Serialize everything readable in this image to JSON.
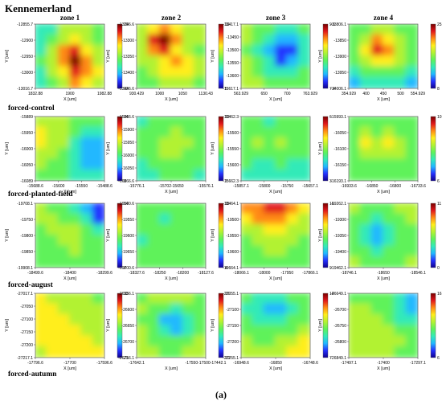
{
  "figure": {
    "title": "Kennemerland",
    "caption": "(a)"
  },
  "chart_data": {
    "type": "heatmap",
    "columns": [
      "zone 1",
      "zone 2",
      "zone 3",
      "zone 4"
    ],
    "rows": [
      "",
      "forced-control",
      "forced-planted-field",
      "forced-august",
      "forced-autumn"
    ],
    "panels": [
      {
        "row": 0,
        "col": 0,
        "xlabel": "X [um]",
        "ylabel": "Y [um]",
        "xticks": [
          "1832.88",
          "1900",
          "1982.88"
        ],
        "yticks": [
          "-12855.7",
          "-12900",
          "-12950",
          "-13000",
          "-13016.7"
        ],
        "cbar_ticks": [
          "19",
          "12"
        ],
        "scheme": [
          [
            2.0,
            2.6,
            3.5,
            4.0,
            3.8,
            3.0
          ],
          [
            2.2,
            3.0,
            4.0,
            4.5,
            4.2,
            3.2
          ],
          [
            2.5,
            3.6,
            5.2,
            6.0,
            5.0,
            3.6
          ],
          [
            2.8,
            3.8,
            5.6,
            6.8,
            5.6,
            4.0
          ],
          [
            2.5,
            3.5,
            5.0,
            6.2,
            5.8,
            4.4
          ],
          [
            2.2,
            3.0,
            4.2,
            5.2,
            5.0,
            4.2
          ]
        ]
      },
      {
        "row": 0,
        "col": 1,
        "xlabel": "X [um]",
        "ylabel": "Y [um]",
        "xticks": [
          "930.429",
          "1000",
          "1050",
          "1130.43"
        ],
        "yticks": [
          "-13246.6",
          "-13300",
          "-13350",
          "-13400",
          "-13446.6"
        ],
        "cbar_ticks": [
          "16",
          "5"
        ],
        "scheme": [
          [
            3.5,
            4.5,
            5.5,
            4.8,
            4.0,
            3.6
          ],
          [
            4.0,
            6.2,
            6.8,
            5.2,
            4.2,
            3.8
          ],
          [
            3.8,
            5.8,
            6.2,
            4.6,
            4.0,
            3.4
          ],
          [
            3.6,
            4.2,
            4.8,
            5.4,
            5.0,
            4.0
          ],
          [
            3.2,
            3.8,
            4.4,
            5.0,
            4.4,
            3.6
          ],
          [
            3.0,
            3.4,
            3.8,
            4.2,
            4.0,
            3.4
          ]
        ]
      },
      {
        "row": 0,
        "col": 2,
        "xlabel": "X [um]",
        "ylabel": "Y [um]",
        "xticks": [
          "563.929",
          "650",
          "700",
          "763.929"
        ],
        "yticks": [
          "-13417.1",
          "-13450",
          "-13500",
          "-13550",
          "-13600",
          "-13617.1"
        ],
        "cbar_ticks": [
          "9.6",
          "7.4"
        ],
        "scheme": [
          [
            3.8,
            3.2,
            2.8,
            2.4,
            2.6,
            3.0
          ],
          [
            3.6,
            2.8,
            2.2,
            1.6,
            1.8,
            2.6
          ],
          [
            3.4,
            2.6,
            1.8,
            0.6,
            0.8,
            2.2
          ],
          [
            3.6,
            2.8,
            2.0,
            1.0,
            1.2,
            2.4
          ],
          [
            3.8,
            3.2,
            2.6,
            2.2,
            2.4,
            3.0
          ],
          [
            4.0,
            3.6,
            3.2,
            3.0,
            3.2,
            3.4
          ]
        ]
      },
      {
        "row": 0,
        "col": 3,
        "xlabel": "X [um]",
        "ylabel": "Y [um]",
        "xticks": [
          "354.929",
          "400",
          "450",
          "500",
          "554.929"
        ],
        "yticks": [
          "-13806.1",
          "-13850",
          "-13900",
          "-13950",
          "-14006.1"
        ],
        "cbar_ticks": [
          "25",
          "8"
        ],
        "scheme": [
          [
            3.0,
            3.4,
            3.6,
            3.6,
            3.2,
            2.8
          ],
          [
            3.2,
            4.2,
            5.2,
            4.8,
            3.6,
            3.0
          ],
          [
            3.4,
            4.6,
            6.6,
            5.8,
            3.8,
            3.2
          ],
          [
            3.2,
            4.0,
            5.0,
            4.6,
            3.6,
            3.0
          ],
          [
            2.6,
            3.0,
            3.2,
            3.0,
            2.8,
            2.4
          ],
          [
            1.8,
            2.2,
            2.4,
            2.2,
            2.0,
            1.8
          ]
        ]
      },
      {
        "row": 1,
        "col": 0,
        "xlabel": "X [um]",
        "ylabel": "Y [um]",
        "xticks": [
          "-15688.6",
          "-15600",
          "-15550",
          "-15488.6"
        ],
        "yticks": [
          "-15889",
          "-15950",
          "-16000",
          "-16050",
          "-16089"
        ],
        "cbar_ticks": [
          "14",
          "8"
        ],
        "scheme": [
          [
            4.2,
            3.8,
            3.6,
            3.4,
            3.2,
            3.0
          ],
          [
            4.4,
            4.0,
            3.8,
            3.2,
            2.6,
            2.4
          ],
          [
            4.6,
            4.2,
            3.6,
            2.6,
            1.8,
            1.6
          ],
          [
            4.2,
            3.8,
            3.2,
            2.2,
            1.4,
            1.2
          ],
          [
            3.6,
            3.4,
            3.0,
            2.4,
            1.8,
            1.6
          ],
          [
            3.2,
            3.0,
            2.8,
            2.6,
            2.4,
            2.2
          ]
        ]
      },
      {
        "row": 1,
        "col": 1,
        "xlabel": "X [um]",
        "ylabel": "Y [um]",
        "xticks": [
          "-15776.1",
          "-15702-15650",
          "-15576.1"
        ],
        "yticks": [
          "-15866.6",
          "-15900",
          "-15950",
          "-16000",
          "-16050",
          "-16066.6"
        ],
        "cbar_ticks": [
          "12",
          "7"
        ],
        "scheme": [
          [
            2.6,
            2.8,
            3.0,
            3.2,
            3.0,
            2.8
          ],
          [
            2.8,
            3.2,
            3.4,
            3.6,
            3.2,
            3.0
          ],
          [
            3.0,
            3.4,
            3.8,
            4.0,
            3.6,
            3.2
          ],
          [
            2.8,
            3.2,
            3.6,
            3.8,
            3.4,
            3.0
          ],
          [
            2.6,
            3.0,
            3.2,
            3.4,
            3.0,
            2.8
          ],
          [
            2.4,
            2.6,
            2.8,
            3.0,
            2.8,
            2.6
          ]
        ]
      },
      {
        "row": 1,
        "col": 2,
        "xlabel": "X [um]",
        "ylabel": "Y [um]",
        "xticks": [
          "-15857.1",
          "-15800",
          "-15750",
          "-15657.1"
        ],
        "yticks": [
          "-15462.3",
          "-15500",
          "-15550",
          "-15600",
          "-15662.3"
        ],
        "cbar_ticks": [
          "6",
          "3"
        ],
        "scheme": [
          [
            3.0,
            2.8,
            2.6,
            2.8,
            3.0,
            3.2
          ],
          [
            3.2,
            3.0,
            2.8,
            3.4,
            3.2,
            3.0
          ],
          [
            3.4,
            3.6,
            3.2,
            3.8,
            3.4,
            3.2
          ],
          [
            3.0,
            3.2,
            2.8,
            3.4,
            3.0,
            2.8
          ],
          [
            2.8,
            2.6,
            2.4,
            2.8,
            2.6,
            2.6
          ],
          [
            2.6,
            2.4,
            2.2,
            2.6,
            2.4,
            2.4
          ]
        ]
      },
      {
        "row": 1,
        "col": 3,
        "xlabel": "X [um]",
        "ylabel": "Y [um]",
        "xticks": [
          "-16933.6",
          "-16850",
          "-16800",
          "-16733.6"
        ],
        "yticks": [
          "-15993.1",
          "-16050",
          "-16100",
          "-16150",
          "-16193.1"
        ],
        "cbar_ticks": [
          "10",
          "6"
        ],
        "scheme": [
          [
            3.0,
            3.2,
            3.2,
            3.2,
            3.0,
            3.0
          ],
          [
            3.2,
            3.6,
            3.4,
            3.6,
            3.4,
            3.2
          ],
          [
            3.4,
            4.6,
            3.8,
            4.8,
            3.8,
            3.4
          ],
          [
            3.2,
            4.0,
            3.6,
            4.2,
            3.6,
            3.2
          ],
          [
            3.0,
            3.4,
            3.2,
            3.4,
            3.2,
            3.0
          ],
          [
            2.8,
            3.0,
            3.0,
            3.0,
            2.8,
            2.8
          ]
        ]
      },
      {
        "row": 2,
        "col": 0,
        "xlabel": "X [um]",
        "ylabel": "Y [um]",
        "xticks": [
          "-18499.6",
          "-18400",
          "-18299.6"
        ],
        "yticks": [
          "-19708.1",
          "-19750",
          "-19800",
          "-19850",
          "-19908.1"
        ],
        "cbar_ticks": [
          "14",
          "8"
        ],
        "scheme": [
          [
            3.6,
            3.4,
            3.2,
            2.6,
            1.6,
            0.4
          ],
          [
            3.8,
            3.6,
            3.4,
            3.0,
            2.0,
            1.0
          ],
          [
            3.4,
            3.6,
            3.8,
            3.6,
            2.8,
            2.2
          ],
          [
            3.2,
            3.4,
            3.6,
            3.8,
            3.4,
            3.0
          ],
          [
            3.0,
            3.2,
            3.4,
            3.6,
            3.4,
            3.2
          ],
          [
            2.8,
            3.0,
            3.2,
            3.4,
            3.2,
            3.0
          ]
        ]
      },
      {
        "row": 2,
        "col": 1,
        "xlabel": "X [um]",
        "ylabel": "Y [um]",
        "xticks": [
          "-18327.6",
          "-18250",
          "-18200",
          "-18127.6"
        ],
        "yticks": [
          "-19500.6",
          "-19550",
          "-19600",
          "-19650",
          "-19700.6"
        ],
        "cbar_ticks": [
          "15",
          "4"
        ],
        "scheme": [
          [
            3.2,
            3.0,
            2.8,
            3.0,
            3.2,
            3.4
          ],
          [
            3.0,
            2.8,
            2.6,
            2.8,
            3.0,
            3.2
          ],
          [
            2.8,
            3.0,
            3.2,
            3.4,
            3.2,
            3.0
          ],
          [
            2.6,
            2.8,
            3.0,
            3.2,
            3.0,
            2.8
          ],
          [
            2.8,
            3.0,
            2.8,
            3.0,
            3.2,
            3.0
          ],
          [
            3.0,
            3.2,
            3.0,
            3.2,
            3.4,
            3.2
          ]
        ]
      },
      {
        "row": 2,
        "col": 2,
        "xlabel": "X [um]",
        "ylabel": "Y [um]",
        "xticks": [
          "-18066.1",
          "-18000",
          "-17950",
          "-17866.1"
        ],
        "yticks": [
          "-19464.1",
          "-19500",
          "-19550",
          "-19600",
          "-19664.1"
        ],
        "cbar_ticks": [
          "16",
          "9"
        ],
        "scheme": [
          [
            5.2,
            5.8,
            6.4,
            6.2,
            5.4,
            4.8
          ],
          [
            4.6,
            5.2,
            5.6,
            5.4,
            4.8,
            4.2
          ],
          [
            3.8,
            4.2,
            4.4,
            4.4,
            4.0,
            3.6
          ],
          [
            3.4,
            3.6,
            3.8,
            3.8,
            3.6,
            3.4
          ],
          [
            3.2,
            3.4,
            3.6,
            3.6,
            3.4,
            3.2
          ],
          [
            3.0,
            3.2,
            3.4,
            3.4,
            3.2,
            3.0
          ]
        ]
      },
      {
        "row": 2,
        "col": 3,
        "xlabel": "X [um]",
        "ylabel": "Y [um]",
        "xticks": [
          "-18746.1",
          "-18650",
          "-18546.1"
        ],
        "yticks": [
          "-19262.1",
          "-19300",
          "-19350",
          "-19400",
          "-19462.1"
        ],
        "cbar_ticks": [
          "11",
          "0"
        ],
        "scheme": [
          [
            3.6,
            3.4,
            3.2,
            3.4,
            3.6,
            3.8
          ],
          [
            3.4,
            3.0,
            2.6,
            3.0,
            3.4,
            3.6
          ],
          [
            3.2,
            2.6,
            1.8,
            2.6,
            3.2,
            3.4
          ],
          [
            3.2,
            2.4,
            1.4,
            2.4,
            3.0,
            3.2
          ],
          [
            3.4,
            2.8,
            2.2,
            2.8,
            3.2,
            3.4
          ],
          [
            3.6,
            3.2,
            3.0,
            3.2,
            3.4,
            3.6
          ]
        ]
      },
      {
        "row": 3,
        "col": 0,
        "xlabel": "X [um]",
        "ylabel": "Y [um]",
        "xticks": [
          "-17796.6",
          "-17700",
          "-17596.6"
        ],
        "yticks": [
          "-27017.1",
          "-27050",
          "-27100",
          "-27150",
          "-27200",
          "-27217.1"
        ],
        "cbar_ticks": [
          "33",
          "21"
        ],
        "scheme": [
          [
            4.4,
            4.2,
            4.0,
            3.8,
            3.6,
            3.4
          ],
          [
            4.6,
            4.4,
            4.2,
            4.0,
            3.8,
            3.6
          ],
          [
            4.8,
            4.6,
            4.4,
            4.2,
            4.0,
            3.8
          ],
          [
            4.6,
            4.8,
            4.6,
            4.4,
            4.2,
            4.0
          ],
          [
            4.4,
            4.6,
            4.8,
            4.6,
            4.4,
            4.2
          ],
          [
            4.2,
            4.4,
            4.6,
            4.8,
            4.6,
            4.4
          ]
        ]
      },
      {
        "row": 3,
        "col": 1,
        "xlabel": "X [um]",
        "ylabel": "Y [um]",
        "xticks": [
          "-17642.1",
          "-17550-17500-17442.1"
        ],
        "yticks": [
          "-26556.1",
          "-26600",
          "-26650",
          "-26700",
          "-26756.1"
        ],
        "cbar_ticks": [
          "16",
          "10"
        ],
        "scheme": [
          [
            3.4,
            3.6,
            3.8,
            3.8,
            3.6,
            3.4
          ],
          [
            3.6,
            3.2,
            2.8,
            2.6,
            3.0,
            3.4
          ],
          [
            3.4,
            2.8,
            1.6,
            1.2,
            2.4,
            3.2
          ],
          [
            3.6,
            3.0,
            2.0,
            1.6,
            2.6,
            3.4
          ],
          [
            3.8,
            3.4,
            3.0,
            2.8,
            3.2,
            3.6
          ],
          [
            3.6,
            3.6,
            3.4,
            3.4,
            3.6,
            3.6
          ]
        ]
      },
      {
        "row": 3,
        "col": 2,
        "xlabel": "X [um]",
        "ylabel": "Y [um]",
        "xticks": [
          "-16948.6",
          "-16850",
          "-16748.6"
        ],
        "yticks": [
          "-27055.1",
          "-27100",
          "-27150",
          "-27200",
          "-27255.1"
        ],
        "cbar_ticks": [
          "14",
          "7"
        ],
        "scheme": [
          [
            3.0,
            2.6,
            2.2,
            2.4,
            2.8,
            3.2
          ],
          [
            2.6,
            2.0,
            1.4,
            1.8,
            2.4,
            3.0
          ],
          [
            2.8,
            2.4,
            2.0,
            2.4,
            2.8,
            3.4
          ],
          [
            3.2,
            3.0,
            2.8,
            3.0,
            3.4,
            3.8
          ],
          [
            3.6,
            3.4,
            3.4,
            3.6,
            4.0,
            4.4
          ],
          [
            3.8,
            3.8,
            3.8,
            4.0,
            4.4,
            4.8
          ]
        ]
      },
      {
        "row": 3,
        "col": 3,
        "xlabel": "X [um]",
        "ylabel": "Y [um]",
        "xticks": [
          "-17497.1",
          "-17400",
          "-17297.1"
        ],
        "yticks": [
          "-26649.1",
          "-26700",
          "-26750",
          "-26800",
          "-26849.1"
        ],
        "cbar_ticks": [
          "16",
          "6"
        ],
        "scheme": [
          [
            3.4,
            3.4,
            3.2,
            3.0,
            2.4,
            1.6
          ],
          [
            3.6,
            3.6,
            3.4,
            3.0,
            2.2,
            1.2
          ],
          [
            3.8,
            3.8,
            3.6,
            3.2,
            2.6,
            2.0
          ],
          [
            4.0,
            4.0,
            3.8,
            3.6,
            3.2,
            3.0
          ],
          [
            4.0,
            4.2,
            4.0,
            3.8,
            3.6,
            3.4
          ],
          [
            3.8,
            4.0,
            3.8,
            3.6,
            3.4,
            3.2
          ]
        ]
      }
    ]
  }
}
